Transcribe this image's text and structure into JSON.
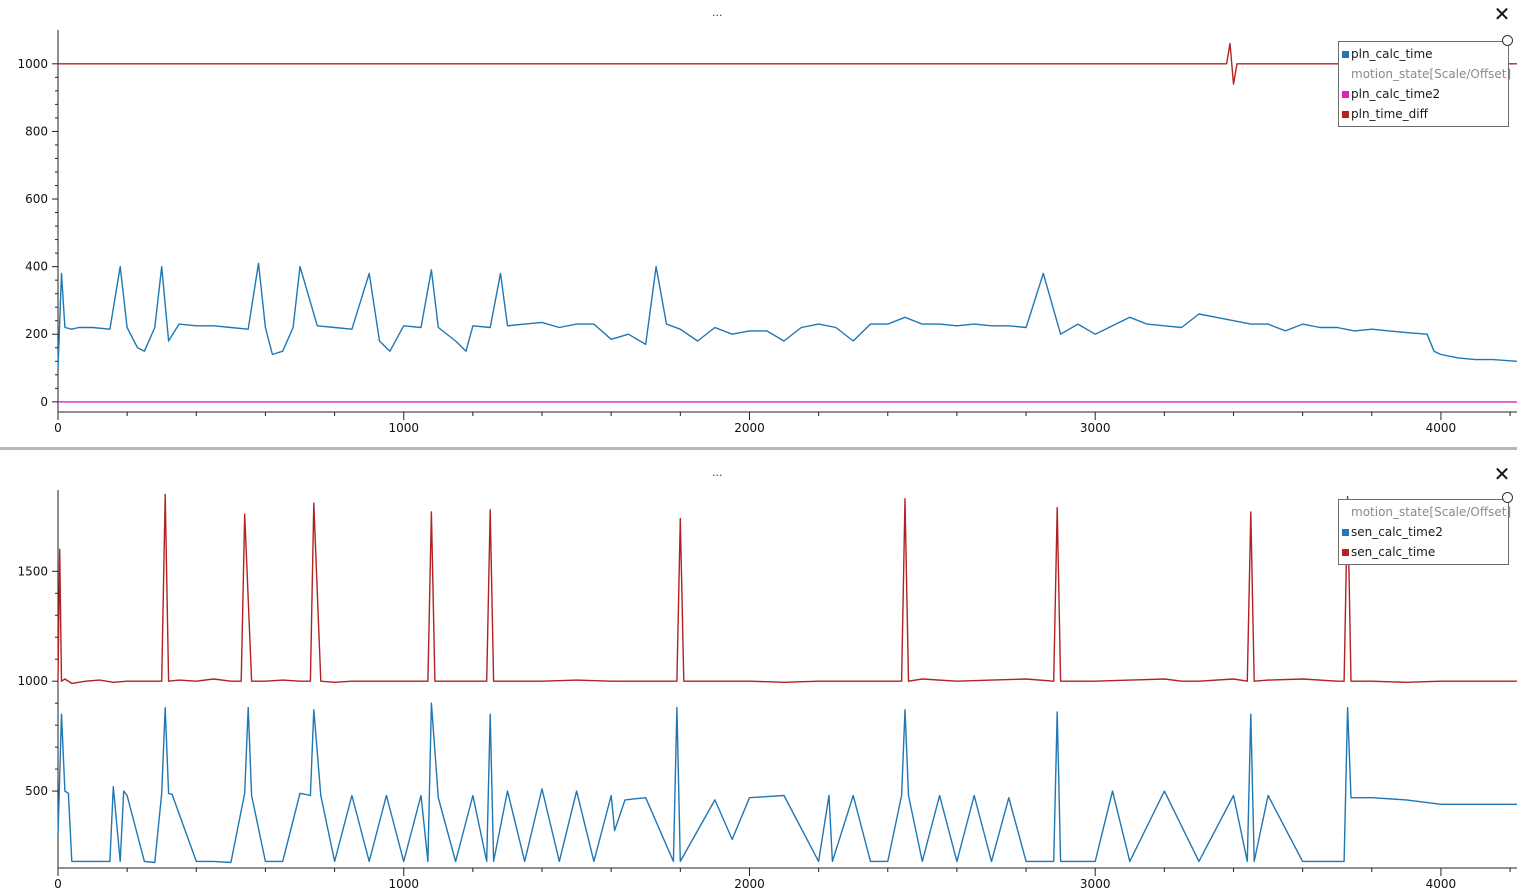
{
  "panels": [
    {
      "menu_label": "...",
      "close_label": "✕",
      "legend": [
        {
          "label": "pln_calc_time",
          "color": "#1f77b4",
          "dim": false
        },
        {
          "label": "motion_state[Scale/Offset]",
          "color": "",
          "dim": true
        },
        {
          "label": "pln_calc_time2",
          "color": "#e020c0",
          "dim": false
        },
        {
          "label": "pln_time_diff",
          "color": "#b22222",
          "dim": false
        }
      ]
    },
    {
      "menu_label": "...",
      "close_label": "✕",
      "legend": [
        {
          "label": "motion_state[Scale/Offset]",
          "color": "",
          "dim": true
        },
        {
          "label": "sen_calc_time2",
          "color": "#1f77b4",
          "dim": false
        },
        {
          "label": "sen_calc_time",
          "color": "#b22222",
          "dim": false
        }
      ]
    }
  ],
  "chart_data": [
    {
      "type": "line",
      "xlim": [
        0,
        4220
      ],
      "ylim": [
        -30,
        1100
      ],
      "x_ticks": [
        0,
        1000,
        2000,
        3000,
        4000
      ],
      "y_ticks": [
        0,
        200,
        400,
        600,
        800,
        1000
      ],
      "grid": false,
      "legend_position": "top-right",
      "series": [
        {
          "name": "pln_time_diff",
          "color": "#b22222",
          "x": [
            0,
            500,
            1000,
            1500,
            2000,
            2500,
            3000,
            3380,
            3390,
            3400,
            3410,
            3420,
            4220
          ],
          "y": [
            1000,
            1000,
            1000,
            1000,
            1000,
            1000,
            1000,
            1000,
            1060,
            940,
            1000,
            1000,
            1000
          ]
        },
        {
          "name": "pln_calc_time2",
          "color": "#e020c0",
          "x": [
            0,
            4220
          ],
          "y": [
            0,
            0
          ]
        },
        {
          "name": "pln_calc_time",
          "color": "#1f77b4",
          "x": [
            0,
            10,
            20,
            40,
            60,
            100,
            150,
            180,
            200,
            230,
            250,
            280,
            300,
            320,
            350,
            400,
            450,
            500,
            550,
            580,
            600,
            620,
            650,
            680,
            700,
            750,
            800,
            850,
            900,
            930,
            960,
            1000,
            1050,
            1080,
            1100,
            1150,
            1180,
            1200,
            1250,
            1280,
            1300,
            1350,
            1400,
            1450,
            1500,
            1550,
            1600,
            1650,
            1700,
            1730,
            1760,
            1800,
            1850,
            1900,
            1950,
            2000,
            2050,
            2100,
            2150,
            2200,
            2250,
            2300,
            2350,
            2400,
            2450,
            2500,
            2550,
            2600,
            2650,
            2700,
            2750,
            2800,
            2850,
            2900,
            2950,
            3000,
            3050,
            3100,
            3150,
            3200,
            3250,
            3300,
            3350,
            3400,
            3450,
            3500,
            3550,
            3600,
            3650,
            3700,
            3750,
            3800,
            3850,
            3900,
            3960,
            3980,
            4000,
            4050,
            4100,
            4150,
            4220
          ],
          "y": [
            100,
            380,
            220,
            215,
            220,
            220,
            215,
            400,
            220,
            160,
            150,
            220,
            400,
            180,
            230,
            225,
            225,
            220,
            215,
            410,
            220,
            140,
            150,
            220,
            400,
            225,
            220,
            215,
            380,
            180,
            150,
            225,
            220,
            390,
            220,
            180,
            150,
            225,
            220,
            380,
            225,
            230,
            235,
            220,
            230,
            230,
            185,
            200,
            170,
            400,
            230,
            215,
            180,
            220,
            200,
            210,
            210,
            180,
            220,
            230,
            220,
            180,
            230,
            230,
            250,
            230,
            230,
            225,
            230,
            225,
            225,
            220,
            380,
            200,
            230,
            200,
            225,
            250,
            230,
            225,
            220,
            260,
            250,
            240,
            230,
            230,
            210,
            230,
            220,
            220,
            210,
            215,
            210,
            205,
            200,
            150,
            140,
            130,
            125,
            125,
            120
          ]
        }
      ]
    },
    {
      "type": "line",
      "xlim": [
        0,
        4220
      ],
      "ylim": [
        150,
        1870
      ],
      "x_ticks": [
        0,
        1000,
        2000,
        3000,
        4000
      ],
      "y_ticks": [
        500,
        1000,
        1500
      ],
      "grid": false,
      "legend_position": "top-right",
      "series": [
        {
          "name": "sen_calc_time",
          "color": "#b22222",
          "x": [
            0,
            5,
            10,
            20,
            40,
            80,
            120,
            160,
            200,
            250,
            300,
            310,
            320,
            350,
            400,
            450,
            500,
            530,
            540,
            560,
            600,
            650,
            700,
            730,
            740,
            760,
            800,
            850,
            900,
            1000,
            1070,
            1080,
            1090,
            1150,
            1200,
            1240,
            1250,
            1260,
            1300,
            1400,
            1500,
            1600,
            1700,
            1790,
            1800,
            1810,
            1900,
            2000,
            2100,
            2200,
            2300,
            2400,
            2440,
            2450,
            2460,
            2500,
            2600,
            2700,
            2800,
            2880,
            2890,
            2900,
            3000,
            3100,
            3200,
            3250,
            3300,
            3400,
            3440,
            3450,
            3460,
            3500,
            3600,
            3700,
            3720,
            3730,
            3740,
            3800,
            3900,
            4000,
            4100,
            4200,
            4220
          ],
          "y": [
            1000,
            1600,
            1000,
            1010,
            990,
            1000,
            1005,
            995,
            1000,
            1000,
            1000,
            1850,
            1000,
            1005,
            1000,
            1010,
            1000,
            1000,
            1760,
            1000,
            1000,
            1005,
            1000,
            1000,
            1810,
            1000,
            995,
            1000,
            1000,
            1000,
            1000,
            1770,
            1000,
            1000,
            1000,
            1000,
            1780,
            1000,
            1000,
            1000,
            1005,
            1000,
            1000,
            1000,
            1740,
            1000,
            1000,
            1000,
            995,
            1000,
            1000,
            1000,
            1000,
            1830,
            1000,
            1010,
            1000,
            1005,
            1010,
            1000,
            1790,
            1000,
            1000,
            1005,
            1010,
            1000,
            1000,
            1010,
            1000,
            1770,
            1000,
            1005,
            1010,
            1000,
            1000,
            1840,
            1000,
            1000,
            995,
            1000,
            1000,
            1000,
            1000
          ]
        },
        {
          "name": "sen_calc_time2",
          "color": "#1f77b4",
          "x": [
            0,
            10,
            20,
            30,
            40,
            50,
            60,
            80,
            150,
            160,
            180,
            190,
            200,
            250,
            280,
            300,
            310,
            320,
            330,
            400,
            450,
            500,
            540,
            550,
            560,
            600,
            650,
            700,
            730,
            740,
            760,
            800,
            850,
            900,
            950,
            1000,
            1050,
            1070,
            1080,
            1100,
            1150,
            1200,
            1240,
            1250,
            1260,
            1300,
            1350,
            1400,
            1450,
            1500,
            1550,
            1600,
            1610,
            1640,
            1700,
            1780,
            1790,
            1800,
            1900,
            1950,
            2000,
            2100,
            2200,
            2230,
            2240,
            2300,
            2350,
            2400,
            2440,
            2450,
            2460,
            2500,
            2550,
            2600,
            2650,
            2700,
            2750,
            2800,
            2880,
            2890,
            2900,
            3000,
            3050,
            3100,
            3200,
            3300,
            3400,
            3440,
            3450,
            3460,
            3500,
            3600,
            3700,
            3720,
            3730,
            3740,
            3800,
            3900,
            4000,
            4100,
            4200,
            4220
          ],
          "y": [
            300,
            850,
            500,
            490,
            180,
            180,
            180,
            180,
            180,
            520,
            180,
            500,
            480,
            180,
            175,
            490,
            880,
            490,
            485,
            180,
            180,
            175,
            490,
            880,
            480,
            180,
            180,
            490,
            480,
            870,
            480,
            180,
            480,
            180,
            480,
            180,
            480,
            180,
            900,
            470,
            180,
            480,
            180,
            850,
            180,
            500,
            180,
            510,
            180,
            500,
            180,
            480,
            320,
            460,
            470,
            180,
            880,
            180,
            460,
            280,
            470,
            480,
            180,
            480,
            180,
            480,
            180,
            180,
            480,
            870,
            480,
            180,
            480,
            180,
            480,
            180,
            470,
            180,
            180,
            860,
            180,
            180,
            500,
            180,
            500,
            180,
            480,
            180,
            850,
            180,
            480,
            180,
            180,
            180,
            880,
            470,
            470,
            460,
            440,
            440,
            440,
            440
          ]
        }
      ]
    }
  ]
}
